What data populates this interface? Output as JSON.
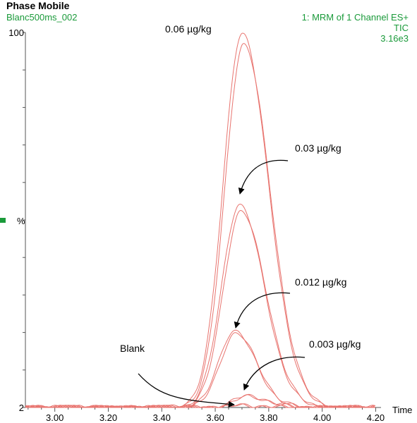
{
  "header": {
    "title": "Phase Mobile",
    "sample": "Blanc500ms_002",
    "function": "1: MRM of 1 Channel ES+",
    "trace": "TIC",
    "scale": "3.16e3"
  },
  "chart_data": {
    "type": "line",
    "xlabel": "Time",
    "ylabel": "%",
    "xlim": [
      2.89,
      4.22
    ],
    "ylim": [
      2,
      100
    ],
    "x_ticks": [
      "3.00",
      "3.20",
      "3.40",
      "3.60",
      "3.80",
      "4.00",
      "4.20"
    ],
    "y_tick_labels": [
      "2",
      "%",
      "100"
    ],
    "grid": false,
    "series": [
      {
        "name": "0.06 µg/kg",
        "peak_x": 3.7,
        "peak_y": 100,
        "width": 0.085
      },
      {
        "name": "0.03 µg/kg",
        "peak_x": 3.69,
        "peak_y": 55,
        "width": 0.08
      },
      {
        "name": "0.012 µg/kg",
        "peak_x": 3.67,
        "peak_y": 22,
        "width": 0.07
      },
      {
        "name": "0.003 µg/kg",
        "peak_x": 3.72,
        "peak_y": 5,
        "width": 0.065
      },
      {
        "name": "Blank",
        "peak_x": 3.7,
        "peak_y": 2.6,
        "width": 0.06
      }
    ],
    "annotations": [
      {
        "text": "0.06 µg/kg",
        "target": "0.06 µg/kg"
      },
      {
        "text": "0.03 µg/kg",
        "target": "0.03 µg/kg"
      },
      {
        "text": "0.012 µg/kg",
        "target": "0.012 µg/kg"
      },
      {
        "text": "0.003 µg/kg",
        "target": "0.003 µg/kg"
      },
      {
        "text": "Blank",
        "target": "Blank"
      }
    ],
    "line_color": "#e8746f",
    "header_color": "#1a9a3a",
    "marker_color": "#1a9a3a"
  }
}
